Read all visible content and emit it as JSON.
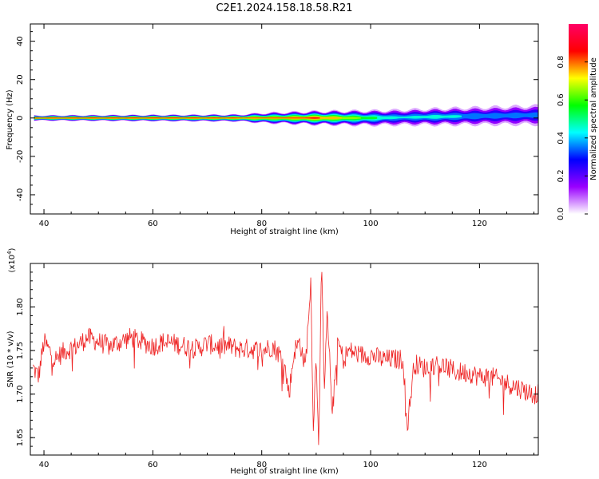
{
  "page": {
    "title": "C2E1.2024.158.18.58.R21"
  },
  "chart_data": [
    {
      "type": "heatmap",
      "xlabel": "Height of straight line (km)",
      "ylabel": "Frequency (Hz)",
      "xlim": [
        37.5,
        130.8
      ],
      "ylim": [
        -50,
        49
      ],
      "xticks": [
        40,
        60,
        80,
        100,
        120
      ],
      "yticks": [
        -40,
        -20,
        0,
        20,
        40
      ],
      "grid": false,
      "colorbar": {
        "label": "Normalized spectral amplitude",
        "range": [
          0,
          1
        ],
        "ticks": [
          "0.0",
          "0.2",
          "0.4",
          "0.6",
          "0.8"
        ],
        "tick_values": [
          0.0,
          0.2,
          0.4,
          0.6,
          0.8
        ],
        "colors": [
          "#ffffff",
          "#9a00ff",
          "#0000ff",
          "#00ffff",
          "#00ff00",
          "#ffff00",
          "#ff0000",
          "#ff0066"
        ]
      },
      "band": {
        "center_hz": [
          [
            38,
            0
          ],
          [
            60,
            0
          ],
          [
            80,
            0
          ],
          [
            100,
            0
          ],
          [
            110,
            0.5
          ],
          [
            120,
            1
          ],
          [
            130.8,
            1.5
          ]
        ],
        "halfwidth_hz": [
          [
            38,
            1.5
          ],
          [
            60,
            1.8
          ],
          [
            76,
            2
          ],
          [
            80,
            3
          ],
          [
            90,
            4
          ],
          [
            100,
            4.5
          ],
          [
            110,
            5
          ],
          [
            120,
            5.5
          ],
          [
            130.8,
            6
          ]
        ],
        "peak_amplitude": [
          [
            38,
            0.9
          ],
          [
            60,
            0.9
          ],
          [
            75,
            0.88
          ],
          [
            82,
            0.8
          ],
          [
            90,
            0.88
          ],
          [
            95,
            0.75
          ],
          [
            100,
            0.6
          ],
          [
            105,
            0.45
          ],
          [
            112,
            0.5
          ],
          [
            120,
            0.42
          ],
          [
            130.8,
            0.4
          ]
        ]
      }
    },
    {
      "type": "line",
      "xlabel": "Height of straight line (km)",
      "ylabel": "SNR (10 * v/v)",
      "y_multiplier": "(x10^4)",
      "xlim": [
        37.5,
        130.8
      ],
      "ylim": [
        1.63,
        1.85
      ],
      "xticks": [
        40,
        60,
        80,
        100,
        120
      ],
      "yticks": [
        1.65,
        1.7,
        1.75,
        1.8
      ],
      "ytick_labels": [
        "1.65",
        "1.70",
        "1.75",
        "1.80"
      ],
      "grid": false,
      "series": [
        {
          "color": "#ee2222",
          "x": [
            38,
            39,
            40,
            41,
            42,
            44,
            46,
            48,
            50,
            52,
            54,
            56,
            58,
            60,
            62,
            64,
            66,
            68,
            70,
            72,
            74,
            76,
            78,
            80,
            82,
            84,
            85,
            86,
            87,
            88,
            89,
            89.5,
            90,
            90.5,
            91,
            91.5,
            92,
            93,
            94,
            95,
            96,
            98,
            100,
            102,
            104,
            106,
            106.7,
            108,
            110,
            112,
            114,
            116,
            118,
            120,
            122,
            124,
            126,
            128,
            130,
            130.8
          ],
          "y": [
            1.73,
            1.72,
            1.76,
            1.75,
            1.74,
            1.75,
            1.755,
            1.765,
            1.76,
            1.755,
            1.76,
            1.765,
            1.76,
            1.755,
            1.76,
            1.758,
            1.755,
            1.752,
            1.758,
            1.755,
            1.755,
            1.752,
            1.752,
            1.75,
            1.755,
            1.74,
            1.7,
            1.75,
            1.76,
            1.73,
            1.83,
            1.66,
            1.75,
            1.64,
            1.85,
            1.7,
            1.79,
            1.68,
            1.76,
            1.74,
            1.75,
            1.745,
            1.745,
            1.74,
            1.74,
            1.74,
            1.66,
            1.735,
            1.73,
            1.735,
            1.73,
            1.725,
            1.725,
            1.72,
            1.72,
            1.715,
            1.71,
            1.705,
            1.7,
            1.7
          ],
          "noise_amplitude": 0.012
        }
      ]
    }
  ]
}
